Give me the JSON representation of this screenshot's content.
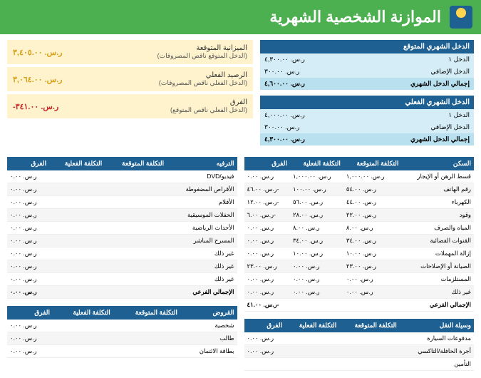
{
  "title": "الموازنة الشخصية الشهرية",
  "income_expected": {
    "header": "الدخل الشهري المتوقع",
    "rows": [
      {
        "label": "الدخل ١",
        "value": "ر.س. ٤,٣٠٠.٠٠"
      },
      {
        "label": "الدخل الإضافي",
        "value": "ر.س. ٣٠٠.٠٠"
      }
    ],
    "total": {
      "label": "إجمالي الدخل الشهري",
      "value": "ر.س. ٤,٦٠٠.٠٠"
    }
  },
  "income_actual": {
    "header": "الدخل الشهري الفعلي",
    "rows": [
      {
        "label": "الدخل ١",
        "value": "ر.س. ٤,٠٠٠.٠٠"
      },
      {
        "label": "الدخل الإضافي",
        "value": "ر.س. ٣٠٠.٠٠"
      }
    ],
    "total": {
      "label": "إجمالي الدخل الشهري",
      "value": "ر.س. ٤,٣٠٠.٠٠"
    }
  },
  "balances": [
    {
      "main": "الميزانية المتوقعة",
      "sub": "(الدخل المتوقع ناقص المصروفات)",
      "value": "ر.س. ٣,٤٠٥.٠٠",
      "cls": "pos"
    },
    {
      "main": "الرصيد الفعلي",
      "sub": "(الدخل الفعلي ناقص المصروفات)",
      "value": "ر.س. ٣,٠٦٤.٠٠",
      "cls": "pos"
    },
    {
      "main": "الفرق",
      "sub": "(الدخل الفعلي ناقص المتوقع)",
      "value": "ر.س. ٣٤١.٠٠-",
      "cls": "neg"
    }
  ],
  "housing": {
    "title": "السكن",
    "cols": [
      "التكلفة المتوقعة",
      "التكلفة الفعلية",
      "الفرق"
    ],
    "rows": [
      {
        "label": "قسط الرهن أو الإيجار",
        "c": [
          "ر.س. ١,٠٠٠.٠٠",
          "ر.س. ١,٠٠٠.٠٠",
          "ر.س. ٠.٠٠"
        ]
      },
      {
        "label": "رقم الهاتف",
        "c": [
          "ر.س. ٥٤.٠٠",
          "ر.س. ١٠٠.٠٠",
          "ر.س. ٤٦.٠٠-"
        ]
      },
      {
        "label": "الكهرباء",
        "c": [
          "ر.س. ٤٤.٠٠",
          "ر.س. ٥٦.٠٠",
          "ر.س. ١٢.٠٠-"
        ]
      },
      {
        "label": "وقود",
        "c": [
          "ر.س. ٢٢.٠٠",
          "ر.س. ٢٨.٠٠",
          "ر.س. ٦.٠٠-"
        ]
      },
      {
        "label": "المياه والصرف",
        "c": [
          "ر.س. ٨.٠٠",
          "ر.س. ٨.٠٠",
          "ر.س. ٠.٠٠"
        ]
      },
      {
        "label": "القنوات الفضائية",
        "c": [
          "ر.س. ٣٤.٠٠",
          "ر.س. ٣٤.٠٠",
          "ر.س. ٠.٠٠"
        ]
      },
      {
        "label": "إزالة المهملات",
        "c": [
          "ر.س. ١٠.٠٠",
          "ر.س. ١٠.٠٠",
          "ر.س. ٠.٠٠"
        ]
      },
      {
        "label": "الصيانة أو الإصلاحات",
        "c": [
          "ر.س. ٢٣.٠٠",
          "ر.س. ٠.٠٠",
          "ر.س. ٢٣.٠٠"
        ]
      },
      {
        "label": "المستلزمات",
        "c": [
          "ر.س. ٠.٠٠",
          "ر.س. ٠.٠٠",
          "ر.س. ٠.٠٠"
        ]
      },
      {
        "label": "غير ذلك",
        "c": [
          "ر.س. ٠.٠٠",
          "ر.س. ٠.٠٠",
          "ر.س. ٠.٠٠"
        ]
      }
    ],
    "subtotal": {
      "label": "الإجمالي الفرعي",
      "value": "ر.س. ٤١.٠٠-"
    }
  },
  "entertainment": {
    "title": "الترفيه",
    "cols": [
      "التكلفة المتوقعة",
      "التكلفة الفعلية",
      "الفرق"
    ],
    "rows": [
      {
        "label": "فيديو/DVD",
        "c": [
          "",
          "",
          "ر.س. ٠.٠٠"
        ]
      },
      {
        "label": "الأقراص المضغوطة",
        "c": [
          "",
          "",
          "ر.س. ٠.٠٠"
        ]
      },
      {
        "label": "الأفلام",
        "c": [
          "",
          "",
          "ر.س. ٠.٠٠"
        ]
      },
      {
        "label": "الحفلات الموسيقية",
        "c": [
          "",
          "",
          "ر.س. ٠.٠٠"
        ]
      },
      {
        "label": "الأحداث الرياضية",
        "c": [
          "",
          "",
          "ر.س. ٠.٠٠"
        ]
      },
      {
        "label": "المسرح المباشر",
        "c": [
          "",
          "",
          "ر.س. ٠.٠٠"
        ]
      },
      {
        "label": "غير ذلك",
        "c": [
          "",
          "",
          "ر.س. ٠.٠٠"
        ]
      },
      {
        "label": "غير ذلك",
        "c": [
          "",
          "",
          "ر.س. ٠.٠٠"
        ]
      },
      {
        "label": "غير ذلك",
        "c": [
          "",
          "",
          "ر.س. ٠.٠٠"
        ]
      }
    ],
    "subtotal": {
      "label": "الإجمالي الفرعي",
      "value": "ر.س. ٠.٠٠"
    }
  },
  "transport": {
    "title": "وسيلة النقل",
    "cols": [
      "التكلفة المتوقعة",
      "التكلفة الفعلية",
      "الفرق"
    ],
    "rows": [
      {
        "label": "مدفوعات السيارة",
        "c": [
          "",
          "",
          "ر.س. ٠.٠٠"
        ]
      },
      {
        "label": "أجرة الحافلة/التاكسي",
        "c": [
          "",
          "",
          "ر.س. ٠.٠٠"
        ]
      },
      {
        "label": "التأمين",
        "c": [
          "",
          "",
          ""
        ]
      }
    ]
  },
  "loans": {
    "title": "القروض",
    "cols": [
      "التكلفة المتوقعة",
      "التكلفة الفعلية",
      "الفرق"
    ],
    "rows": [
      {
        "label": "شخصية",
        "c": [
          "",
          "",
          "ر.س. ٠.٠٠"
        ]
      },
      {
        "label": "طالب",
        "c": [
          "",
          "",
          "ر.س. ٠.٠٠"
        ]
      },
      {
        "label": "بطاقة الائتمان",
        "c": [
          "",
          "",
          "ر.س. ٠.٠٠"
        ]
      }
    ]
  }
}
